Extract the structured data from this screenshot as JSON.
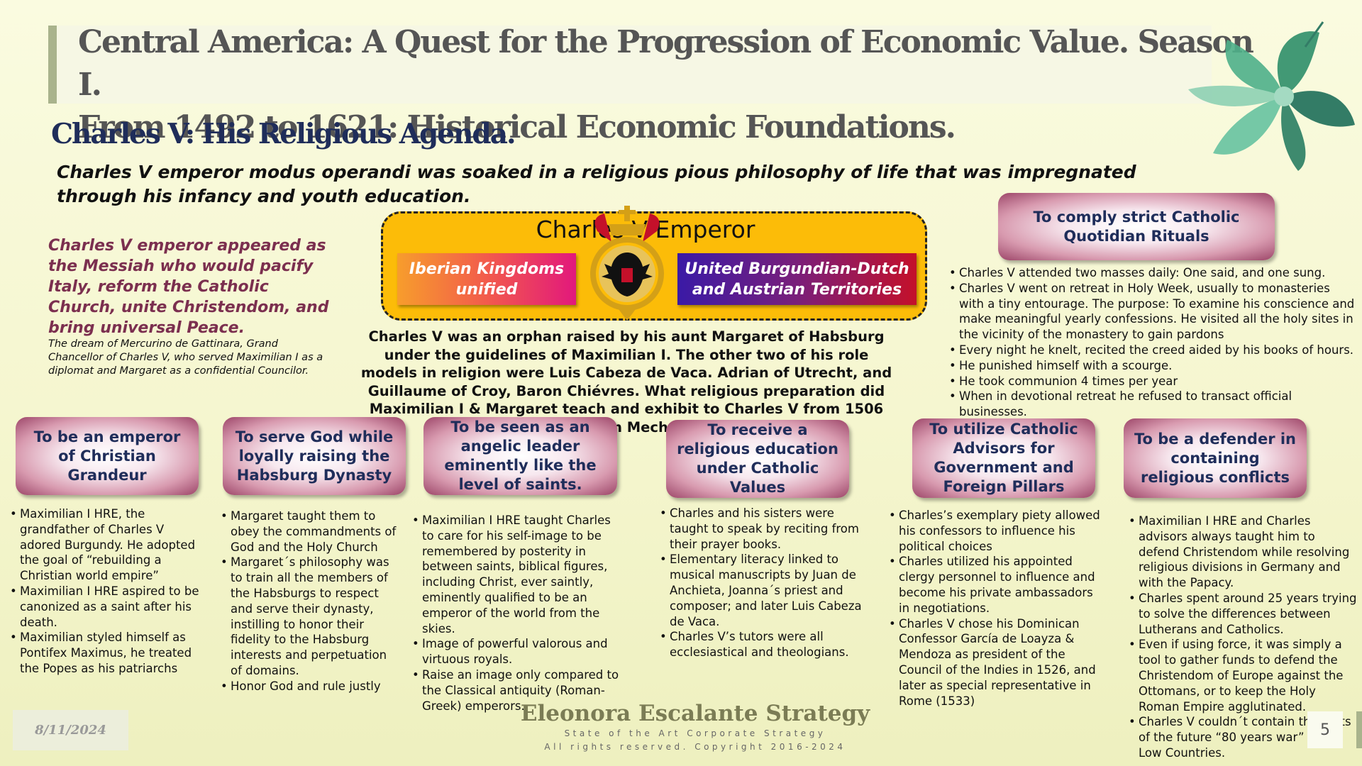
{
  "header": {
    "title_line1": "Central America:  A Quest for the Progression of  Economic Value.  Season I.",
    "title_line2": "From 1492 to 1621: Historical Economic Foundations.",
    "subtitle": "Charles V: His Religious Agenda."
  },
  "intro": "Charles V emperor modus operandi was soaked in a religious pious philosophy of life that was impregnated through his infancy and youth education.",
  "messiah": "Charles V emperor appeared as the Messiah who would pacify Italy, reform the Catholic Church, unite Christendom, and bring universal Peace.",
  "dream": "The dream of Mercurino de Gattinara, Grand Chancellor of Charles V, who served Maximilian I as a diplomat and Margaret as a confidential Councilor.",
  "emperor_box": {
    "title": "Charles V Emperor",
    "left_label": "Iberian Kingdoms unified",
    "right_label": "United Burgundian-Dutch and Austrian Territories"
  },
  "orphan_text": "Charles V was an orphan raised by his aunt Margaret of Habsburg under the guidelines of Maximilian I. The other two of his role models in religion were Luis Cabeza de Vaca. Adrian of Utrecht, and Guillaume of Croy, Baron Chiévres. What religious preparation did Maximilian I & Margaret teach and exhibit to Charles V from 1506 to 1516 in Mechelen?",
  "rituals": {
    "title": "To comply strict Catholic Quotidian Rituals",
    "items": [
      "Charles V attended two masses daily: One said, and one sung.",
      "Charles V went on retreat in Holy Week, usually to monasteries with a tiny entourage. The purpose: To examine his conscience and make meaningful yearly confessions. He visited all the holy sites in the vicinity of the monastery to gain pardons",
      "Every night he knelt, recited the creed aided by his books of hours.",
      "He punished himself with a scourge.",
      "He took communion 4 times per year",
      "When in devotional retreat he refused to transact official businesses."
    ]
  },
  "columns": [
    {
      "title": "To be an emperor of Christian Grandeur",
      "items": [
        "Maximilian I HRE, the grandfather of Charles V adored Burgundy. He adopted the goal of “rebuilding a Christian world empire”",
        "Maximilian I HRE aspired to be canonized as a saint after his death.",
        "Maximilian styled himself as Pontifex Maximus, he treated the Popes as his patriarchs"
      ]
    },
    {
      "title": "To serve God while loyally raising the Habsburg Dynasty",
      "items": [
        "Margaret taught them to obey the commandments of God and the Holy Church",
        "Margaret´s philosophy was to train all the members of the Habsburgs to respect and serve their dynasty, instilling to honor their fidelity to the Habsburg interests and perpetuation of domains.",
        "Honor God and rule justly"
      ]
    },
    {
      "title": "To be seen as an angelic leader eminently like the level of saints.",
      "items": [
        "Maximilian I HRE taught Charles to care for his self-image to be remembered by posterity in between saints, biblical figures, including Christ, ever saintly, eminently qualified to be an emperor of the world from the skies.",
        "Image of powerful valorous and virtuous royals.",
        "Raise an image only compared to the Classical antiquity (Roman-Greek) emperors."
      ]
    },
    {
      "title": "To receive a religious education under Catholic Values",
      "items": [
        "Charles and his sisters were taught to speak by reciting from their prayer books.",
        "Elementary literacy linked to musical manuscripts by Juan de Anchieta, Joanna´s priest and composer; and later Luis Cabeza de Vaca.",
        "Charles V’s tutors were all ecclesiastical and theologians."
      ]
    },
    {
      "title": "To utilize Catholic Advisors for Government and Foreign Pillars",
      "items": [
        " Charles’s exemplary piety allowed his confessors to influence his political choices",
        "Charles utilized his appointed clergy personnel to influence and become his private ambassadors in negotiations.",
        "Charles V chose his Dominican Confessor García de Loayza & Mendoza as president of the Council of the Indies in 1526, and later as special representative in Rome (1533)"
      ]
    },
    {
      "title": "To be a defender in containing religious conflicts",
      "items": [
        "Maximilian I HRE and Charles advisors always taught him to defend Christendom while resolving religious divisions in Germany and with the Papacy.",
        "Charles spent around 25 years trying to solve the differences between Lutherans and Catholics.",
        "Even if using force, it was simply a tool to gather funds to defend the Christendom of Europe against the Ottomans, or to keep the Holy Roman Empire agglutinated.",
        "Charles V couldn´t contain the roots of the future “80 years war” in the Low Countries."
      ]
    }
  ],
  "footer": {
    "date": "8/11/2024",
    "brand": "Eleonora Escalante Strategy",
    "tagline": "State of the Art Corporate Strategy",
    "copyright": "All rights reserved. Copyright 2016-2024",
    "page_number": "5"
  },
  "colors": {
    "accent_gold": "#fcbc08",
    "title_blue": "#1f2d5a",
    "messiah_maroon": "#7b2f4f"
  }
}
